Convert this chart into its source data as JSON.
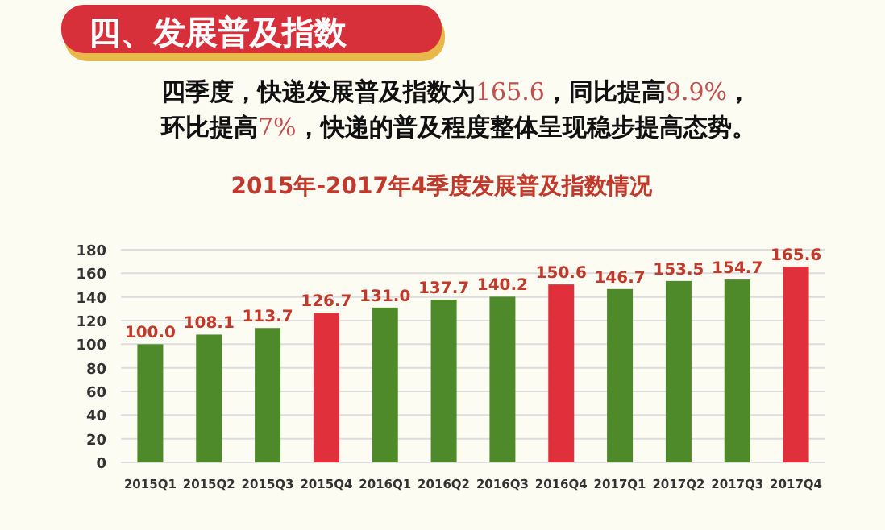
{
  "chart_data": {
    "type": "bar",
    "title": "四、发展普及指数",
    "subtitle": "2015年-2017年4季度发展普及指数情况",
    "annotations": [
      "四季度，快递发展普及指数为165.6，同比提高9.9%，",
      "环比提高7%，快递的普及程度整体呈现稳步提高态势。"
    ],
    "categories": [
      "2015Q1",
      "2015Q2",
      "2015Q3",
      "2015Q4",
      "2016Q1",
      "2016Q2",
      "2016Q3",
      "2016Q4",
      "2017Q1",
      "2017Q2",
      "2017Q3",
      "2017Q4"
    ],
    "values": [
      100.0,
      108.1,
      113.7,
      126.7,
      131.0,
      137.7,
      140.2,
      150.6,
      146.7,
      153.5,
      154.7,
      165.6
    ],
    "colors": [
      "#4e8a2a",
      "#4e8a2a",
      "#4e8a2a",
      "#e0303c",
      "#4e8a2a",
      "#4e8a2a",
      "#4e8a2a",
      "#e0303c",
      "#4e8a2a",
      "#4e8a2a",
      "#4e8a2a",
      "#e0303c"
    ],
    "value_labels": [
      "100.0",
      "108.1",
      "113.7",
      "126.7",
      "131.0",
      "137.7",
      "140.2",
      "150.6",
      "146.7",
      "153.5",
      "154.7",
      "165.6"
    ],
    "ylim": [
      0,
      180
    ],
    "yticks": [
      0,
      20,
      40,
      60,
      80,
      100,
      120,
      140,
      160,
      180
    ],
    "grid": "y"
  }
}
